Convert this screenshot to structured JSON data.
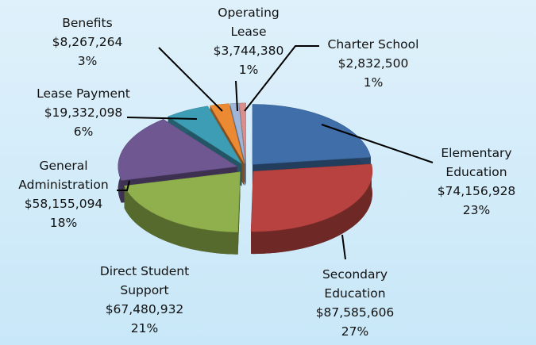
{
  "chart_data": {
    "type": "pie",
    "categories": [
      "Elementary Education",
      "Secondary Education",
      "Direct Student Support",
      "General Administration",
      "Lease Payment",
      "Benefits",
      "Operating Lease",
      "Charter School"
    ],
    "values": [
      74156928,
      87585606,
      67480932,
      58155094,
      19332098,
      8267264,
      3744380,
      2832500
    ],
    "value_labels": [
      "$74,156,928",
      "$87,585,606",
      "$67,480,932",
      "$58,155,094",
      "$19,332,098",
      "$8,267,264",
      "$3,744,380",
      "$2,832,500"
    ],
    "percent_labels": [
      "23%",
      "27%",
      "21%",
      "18%",
      "6%",
      "3%",
      "1%",
      "1%"
    ],
    "colors": [
      "#3f6ea8",
      "#b8423f",
      "#8fb04c",
      "#6f5792",
      "#3d9db5",
      "#ec8a34",
      "#9fb6d9",
      "#d98f8c"
    ]
  }
}
